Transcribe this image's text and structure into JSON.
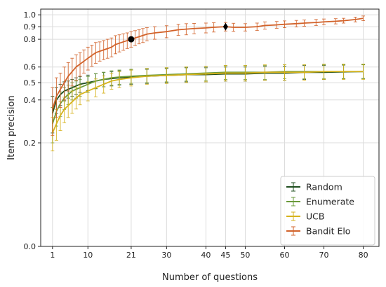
{
  "chart_data": {
    "type": "line",
    "title": "",
    "xlabel": "Number of questions",
    "ylabel": "Item precision",
    "xlim": [
      -2,
      84
    ],
    "ylim": [
      0.0,
      1.05
    ],
    "y_scale": "sqrt",
    "grid": true,
    "legend_position": "lower-right",
    "x_ticks": [
      1,
      10,
      21,
      30,
      40,
      45,
      50,
      60,
      70,
      80
    ],
    "y_ticks": [
      0.0,
      0.2,
      0.4,
      0.5,
      0.6,
      0.8,
      0.9,
      1.0
    ],
    "y_tick_labels": [
      "0.0",
      "0.2",
      "0.4",
      "0.5",
      "0.6",
      "0.8",
      "0.9",
      "1.0"
    ],
    "series": [
      {
        "name": "Random",
        "color": "#1e4d1e",
        "x": [
          1,
          2,
          3,
          4,
          5,
          6,
          7,
          8,
          10,
          12,
          14,
          16,
          18,
          21,
          25,
          30,
          35,
          40,
          45,
          50,
          55,
          60,
          65,
          70,
          75,
          80
        ],
        "y": [
          0.33,
          0.4,
          0.43,
          0.45,
          0.46,
          0.47,
          0.48,
          0.49,
          0.5,
          0.51,
          0.52,
          0.525,
          0.53,
          0.535,
          0.54,
          0.545,
          0.55,
          0.55,
          0.555,
          0.555,
          0.56,
          0.56,
          0.565,
          0.565,
          0.568,
          0.57
        ],
        "err": [
          0.09,
          0.07,
          0.06,
          0.055,
          0.05,
          0.05,
          0.05,
          0.048,
          0.047,
          0.046,
          0.045,
          0.045,
          0.045,
          0.045,
          0.045,
          0.045,
          0.045,
          0.045,
          0.045,
          0.045,
          0.045,
          0.045,
          0.045,
          0.045,
          0.045,
          0.045
        ]
      },
      {
        "name": "Enumerate",
        "color": "#6a9a3a",
        "x": [
          1,
          2,
          3,
          4,
          5,
          6,
          7,
          8,
          10,
          12,
          14,
          16,
          18,
          21,
          25,
          30,
          35,
          40,
          45,
          50,
          55,
          60,
          65,
          70,
          75,
          80
        ],
        "y": [
          0.28,
          0.34,
          0.38,
          0.41,
          0.43,
          0.45,
          0.46,
          0.47,
          0.49,
          0.51,
          0.52,
          0.53,
          0.535,
          0.54,
          0.545,
          0.55,
          0.555,
          0.56,
          0.565,
          0.565,
          0.565,
          0.57,
          0.57,
          0.57,
          0.57,
          0.57
        ],
        "err": [
          0.08,
          0.07,
          0.065,
          0.06,
          0.055,
          0.05,
          0.05,
          0.05,
          0.048,
          0.046,
          0.045,
          0.045,
          0.045,
          0.045,
          0.045,
          0.045,
          0.045,
          0.045,
          0.045,
          0.045,
          0.045,
          0.045,
          0.045,
          0.045,
          0.045,
          0.045
        ]
      },
      {
        "name": "UCB",
        "color": "#d6b21c",
        "x": [
          1,
          2,
          3,
          4,
          5,
          6,
          7,
          8,
          10,
          12,
          14,
          16,
          18,
          21,
          25,
          30,
          35,
          40,
          45,
          50,
          55,
          60,
          65,
          70,
          75,
          80
        ],
        "y": [
          0.24,
          0.28,
          0.32,
          0.35,
          0.37,
          0.39,
          0.41,
          0.43,
          0.45,
          0.47,
          0.49,
          0.51,
          0.52,
          0.53,
          0.54,
          0.545,
          0.55,
          0.555,
          0.56,
          0.56,
          0.565,
          0.565,
          0.565,
          0.57,
          0.57,
          0.57
        ],
        "err": [
          0.07,
          0.07,
          0.07,
          0.065,
          0.06,
          0.06,
          0.058,
          0.056,
          0.055,
          0.053,
          0.052,
          0.05,
          0.05,
          0.05,
          0.05,
          0.05,
          0.05,
          0.05,
          0.05,
          0.05,
          0.05,
          0.05,
          0.05,
          0.05,
          0.05,
          0.05
        ]
      },
      {
        "name": "Bandit Elo",
        "color": "#d2622a",
        "x": [
          1,
          2,
          3,
          4,
          5,
          6,
          7,
          8,
          9,
          10,
          11,
          12,
          13,
          14,
          15,
          16,
          17,
          18,
          19,
          20,
          21,
          22,
          23,
          24,
          25,
          27,
          30,
          33,
          35,
          37,
          40,
          42,
          45,
          47,
          50,
          53,
          55,
          58,
          60,
          63,
          65,
          68,
          70,
          73,
          75,
          78,
          80
        ],
        "y": [
          0.35,
          0.42,
          0.46,
          0.5,
          0.54,
          0.57,
          0.6,
          0.62,
          0.64,
          0.66,
          0.68,
          0.7,
          0.71,
          0.72,
          0.73,
          0.74,
          0.76,
          0.77,
          0.78,
          0.79,
          0.8,
          0.81,
          0.82,
          0.83,
          0.84,
          0.85,
          0.86,
          0.875,
          0.88,
          0.885,
          0.89,
          0.895,
          0.9,
          0.895,
          0.895,
          0.9,
          0.91,
          0.915,
          0.92,
          0.925,
          0.93,
          0.935,
          0.94,
          0.945,
          0.95,
          0.96,
          0.97
        ],
        "err": [
          0.12,
          0.11,
          0.1,
          0.1,
          0.09,
          0.09,
          0.085,
          0.08,
          0.08,
          0.08,
          0.075,
          0.075,
          0.07,
          0.07,
          0.07,
          0.07,
          0.068,
          0.065,
          0.063,
          0.06,
          0.06,
          0.058,
          0.055,
          0.055,
          0.052,
          0.05,
          0.048,
          0.045,
          0.045,
          0.042,
          0.04,
          0.038,
          0.035,
          0.033,
          0.03,
          0.03,
          0.03,
          0.028,
          0.028,
          0.027,
          0.026,
          0.025,
          0.024,
          0.022,
          0.02,
          0.02,
          0.02
        ]
      }
    ],
    "markers": [
      {
        "series": "Bandit Elo",
        "x": 21,
        "y": 0.8,
        "shape": "circle"
      },
      {
        "series": "Bandit Elo",
        "x": 45,
        "y": 0.9,
        "shape": "diamond"
      }
    ]
  }
}
